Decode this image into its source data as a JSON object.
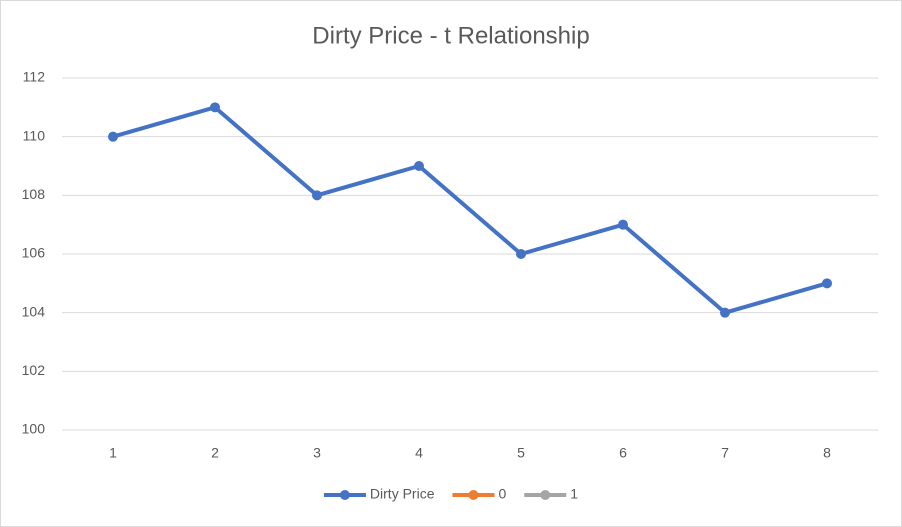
{
  "chart_data": {
    "type": "line",
    "title": "Dirty Price - t Relationship",
    "categories": [
      "1",
      "2",
      "3",
      "4",
      "5",
      "6",
      "7",
      "8"
    ],
    "series": [
      {
        "name": "Dirty Price",
        "color": "#4472c4",
        "values": [
          110,
          111,
          108,
          109,
          106,
          107,
          104,
          105
        ]
      },
      {
        "name": "0",
        "color": "#ed7d31",
        "values": [
          null,
          null,
          null,
          null,
          null,
          null,
          null,
          null
        ]
      },
      {
        "name": "1",
        "color": "#a5a5a5",
        "values": [
          null,
          null,
          null,
          null,
          null,
          null,
          null,
          null
        ]
      }
    ],
    "ylim": [
      100,
      112
    ],
    "yticks": [
      100,
      102,
      104,
      106,
      108,
      110,
      112
    ],
    "grid": true,
    "legend": "bottom"
  }
}
